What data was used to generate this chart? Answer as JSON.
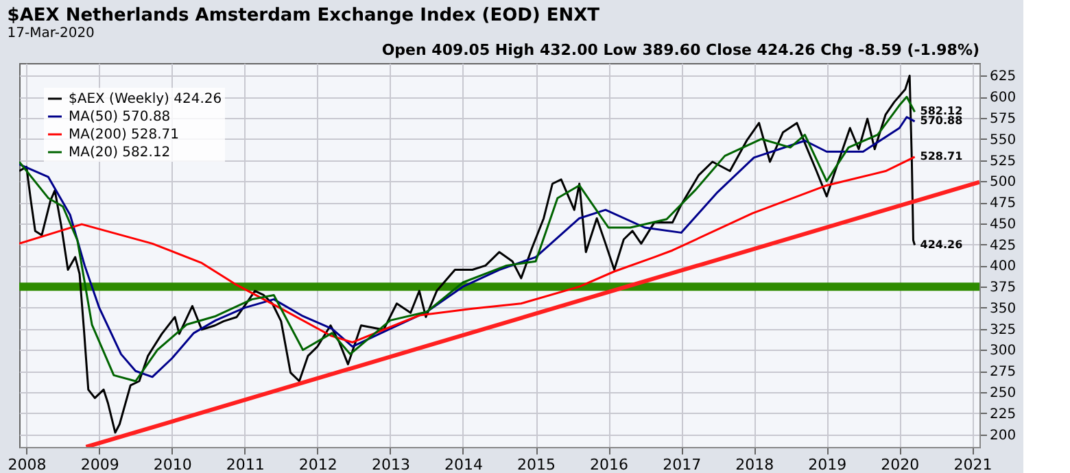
{
  "chart_data": {
    "type": "line",
    "title": "$AEX Netherlands Amsterdam Exchange Index (EOD) ENXT",
    "subtitle": "17-Mar-2020",
    "annotations": [
      "Open 409.05 High 432.00 Low 389.60 Close 424.26 Chg -8.59 (-1.98%)"
    ],
    "series": [
      {
        "name": "$AEX (Weekly) 424.26",
        "color": "#000000",
        "x": [
          2007.9,
          2008.0,
          2008.06,
          2008.12,
          2008.21,
          2008.33,
          2008.39,
          2008.48,
          2008.57,
          2008.67,
          2008.73,
          2008.79,
          2008.85,
          2008.94,
          2009.06,
          2009.12,
          2009.22,
          2009.28,
          2009.43,
          2009.55,
          2009.67,
          2009.86,
          2010.04,
          2010.1,
          2010.28,
          2010.41,
          2010.59,
          2010.71,
          2010.89,
          2011.02,
          2011.14,
          2011.26,
          2011.38,
          2011.5,
          2011.63,
          2011.75,
          2011.87,
          2012.0,
          2012.18,
          2012.3,
          2012.42,
          2012.6,
          2012.91,
          2013.09,
          2013.28,
          2013.4,
          2013.49,
          2013.64,
          2013.89,
          2014.13,
          2014.31,
          2014.5,
          2014.68,
          2014.8,
          2014.95,
          2015.11,
          2015.23,
          2015.35,
          2015.53,
          2015.6,
          2015.69,
          2015.84,
          2015.96,
          2016.08,
          2016.21,
          2016.33,
          2016.45,
          2016.63,
          2016.88,
          2017.0,
          2017.24,
          2017.43,
          2017.67,
          2017.9,
          2018.07,
          2018.22,
          2018.4,
          2018.59,
          2018.71,
          2018.86,
          2019.0,
          2019.14,
          2019.32,
          2019.44,
          2019.56,
          2019.66,
          2019.81,
          2019.93,
          2020.08,
          2020.14,
          2020.17,
          2020.19,
          2020.21
        ],
        "values": [
          512,
          517,
          477,
          441,
          436,
          477,
          489,
          446,
          395,
          410,
          390,
          324,
          253,
          243,
          253,
          237,
          202,
          212,
          258,
          263,
          293,
          319,
          339,
          319,
          352,
          324,
          329,
          334,
          339,
          355,
          370,
          365,
          355,
          334,
          273,
          263,
          293,
          304,
          329,
          309,
          283,
          329,
          324,
          355,
          344,
          370,
          339,
          370,
          395,
          395,
          400,
          416,
          405,
          385,
          421,
          456,
          497,
          502,
          466,
          497,
          416,
          456,
          426,
          395,
          431,
          441,
          426,
          451,
          451,
          472,
          507,
          523,
          512,
          548,
          569,
          523,
          558,
          569,
          543,
          512,
          482,
          518,
          563,
          538,
          574,
          538,
          579,
          594,
          609,
          625,
          525,
          430,
          424.26
        ],
        "value_labels": [
          null,
          null,
          null,
          null,
          null,
          null,
          null,
          null,
          null,
          null,
          null,
          null,
          null,
          null,
          null,
          null,
          null,
          null,
          null,
          null,
          null,
          null,
          null,
          null,
          null,
          null,
          null,
          null,
          null,
          null,
          null,
          null,
          null,
          null,
          null,
          null,
          null,
          null,
          null,
          null,
          null,
          null,
          null,
          null,
          null,
          null,
          null,
          null,
          null,
          null,
          null,
          null,
          null,
          null,
          null,
          null,
          null,
          null,
          null,
          null,
          null,
          null,
          null,
          null,
          null,
          null,
          null,
          null,
          null,
          null,
          null,
          null,
          null,
          null,
          null,
          null,
          null,
          null,
          null,
          null,
          null,
          null,
          null,
          null,
          null,
          null,
          null,
          null,
          null,
          null,
          null,
          null,
          "424.26"
        ]
      },
      {
        "name": "MA(50) 570.88",
        "color": "#00008b",
        "x": [
          2007.9,
          2008.3,
          2008.6,
          2008.8,
          2009.0,
          2009.3,
          2009.5,
          2009.73,
          2010.0,
          2010.3,
          2010.6,
          2011.0,
          2011.4,
          2011.8,
          2012.2,
          2012.48,
          2013.0,
          2013.5,
          2014.0,
          2014.5,
          2015.0,
          2015.6,
          2015.96,
          2016.5,
          2017.0,
          2017.5,
          2018.0,
          2018.7,
          2019.0,
          2019.5,
          2020.0,
          2020.1,
          2020.21
        ],
        "values": [
          520,
          505,
          460,
          400,
          350,
          295,
          275,
          268,
          290,
          320,
          335,
          350,
          360,
          340,
          325,
          304,
          325,
          345,
          375,
          395,
          410,
          456,
          466,
          445,
          439,
          487,
          528,
          548,
          535,
          535,
          563,
          576,
          570.88
        ],
        "value_labels": [
          null,
          null,
          null,
          null,
          null,
          null,
          null,
          null,
          null,
          null,
          null,
          null,
          null,
          null,
          null,
          null,
          null,
          null,
          null,
          null,
          null,
          null,
          null,
          null,
          null,
          null,
          null,
          null,
          null,
          null,
          null,
          null,
          "570.88"
        ]
      },
      {
        "name": "MA(200) 528.71",
        "color": "#ff0000",
        "x": [
          2007.9,
          2008.76,
          2009.73,
          2010.41,
          2010.89,
          2011.5,
          2012.18,
          2012.48,
          2013.4,
          2014.13,
          2014.8,
          2015.6,
          2016.08,
          2016.63,
          2016.88,
          2017.98,
          2019.0,
          2019.81,
          2020.21
        ],
        "values": [
          426,
          449,
          426,
          403,
          377,
          349,
          317,
          309,
          341,
          349,
          355,
          375,
          393,
          410,
          418,
          462,
          495,
          512,
          528.71
        ],
        "value_labels": [
          null,
          null,
          null,
          null,
          null,
          null,
          null,
          null,
          null,
          null,
          null,
          null,
          null,
          null,
          null,
          null,
          null,
          null,
          "528.71"
        ]
      },
      {
        "name": "MA(20) 582.12",
        "color": "#006400",
        "x": [
          2007.9,
          2008.3,
          2008.5,
          2008.7,
          2008.9,
          2009.2,
          2009.5,
          2009.8,
          2010.2,
          2010.6,
          2011.1,
          2011.4,
          2011.8,
          2012.2,
          2012.45,
          2013.0,
          2013.5,
          2014.0,
          2014.6,
          2015.0,
          2015.3,
          2015.6,
          2016.0,
          2016.3,
          2016.8,
          2017.2,
          2017.6,
          2018.1,
          2018.5,
          2018.7,
          2019.0,
          2019.3,
          2019.7,
          2020.0,
          2020.1,
          2020.21
        ],
        "values": [
          523,
          480,
          470,
          430,
          330,
          270,
          263,
          300,
          330,
          340,
          360,
          365,
          300,
          320,
          295,
          335,
          345,
          380,
          400,
          405,
          480,
          495,
          445,
          445,
          455,
          490,
          530,
          550,
          540,
          555,
          500,
          540,
          555,
          590,
          600,
          582.12
        ],
        "value_labels": [
          null,
          null,
          null,
          null,
          null,
          null,
          null,
          null,
          null,
          null,
          null,
          null,
          null,
          null,
          null,
          null,
          null,
          null,
          null,
          null,
          null,
          null,
          null,
          null,
          null,
          null,
          null,
          null,
          null,
          null,
          null,
          null,
          null,
          null,
          null,
          "582.12"
        ]
      },
      {
        "color": "#ff2020",
        "x": [
          2008.82,
          2021.1
        ],
        "values": [
          185,
          499
        ]
      }
    ],
    "ref_lines": [
      {
        "axis": "y",
        "value": 375,
        "color": "#2e8b00"
      }
    ],
    "xlim": [
      2007.9,
      2021.1
    ],
    "xticks": [
      2008,
      2009,
      2010,
      2011,
      2012,
      2013,
      2014,
      2015,
      2016,
      2017,
      2018,
      2019,
      2020,
      2021
    ],
    "ylim": [
      185,
      640
    ],
    "yticks": [
      200,
      225,
      250,
      275,
      300,
      325,
      350,
      375,
      400,
      425,
      450,
      475,
      500,
      525,
      550,
      575,
      600,
      625
    ],
    "grid": true,
    "legend": "top left"
  }
}
